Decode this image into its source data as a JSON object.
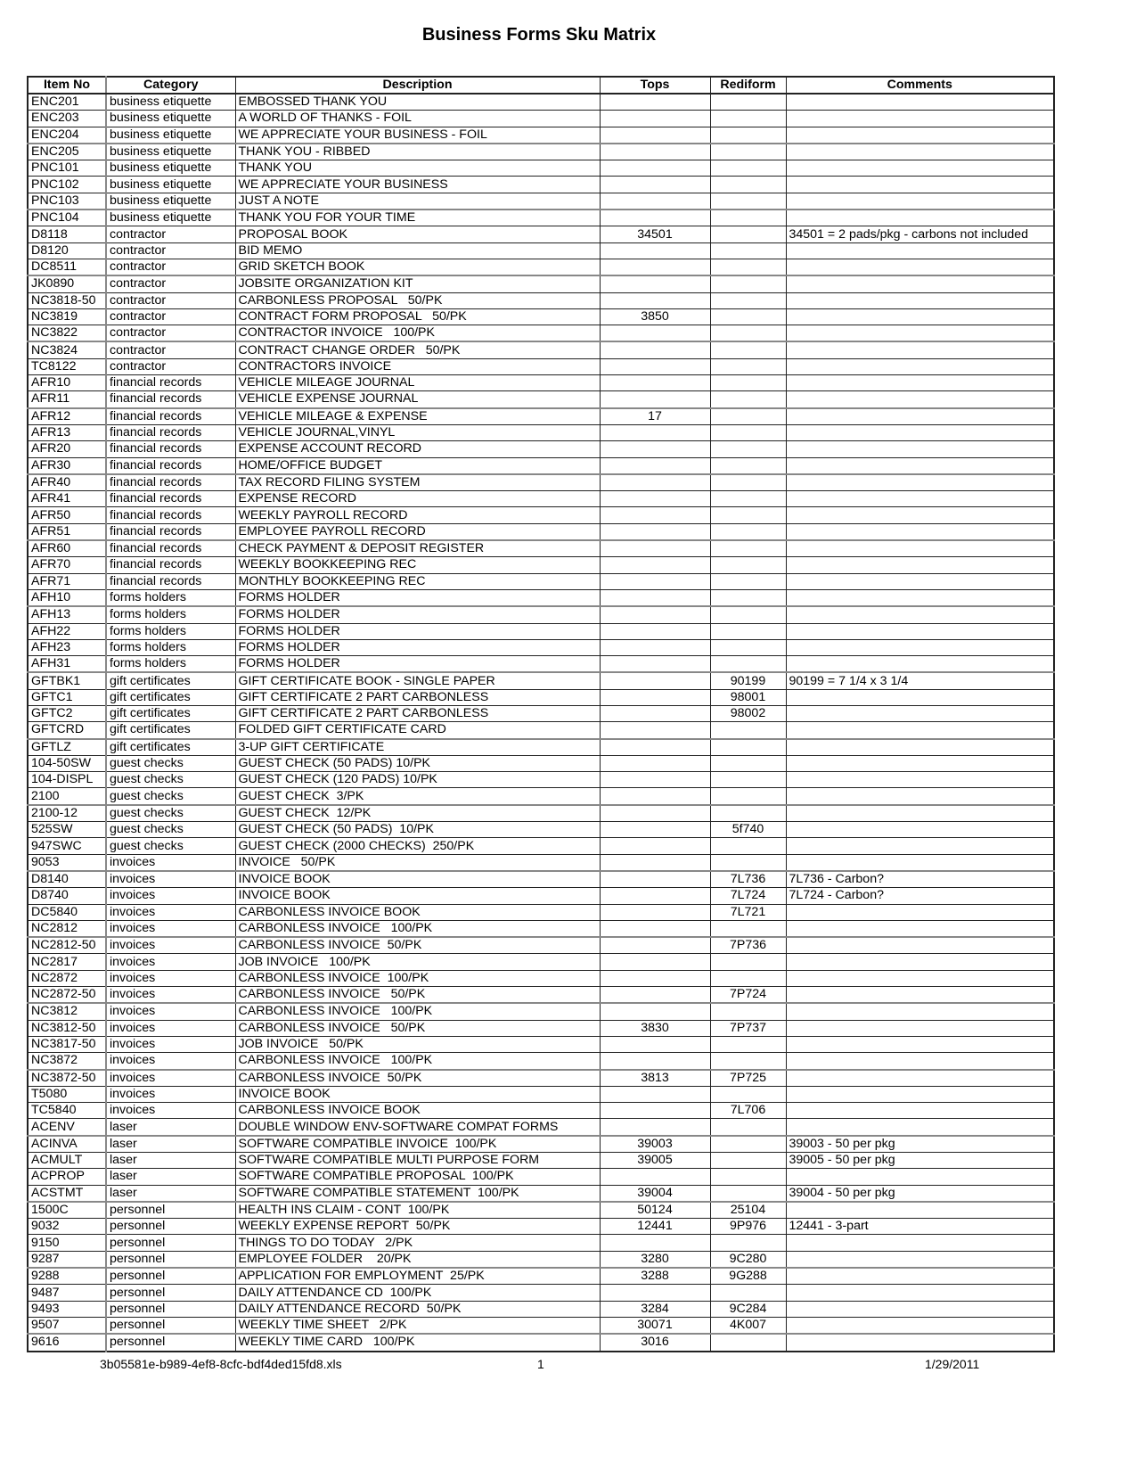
{
  "title": "Business Forms Sku Matrix",
  "columns": [
    "Item No",
    "Category",
    "Description",
    "Tops",
    "Rediform",
    "Comments"
  ],
  "rows": [
    [
      "ENC201",
      "business etiquette",
      "EMBOSSED THANK YOU",
      "",
      "",
      ""
    ],
    [
      "ENC203",
      "business etiquette",
      "A WORLD OF THANKS - FOIL",
      "",
      "",
      ""
    ],
    [
      "ENC204",
      "business etiquette",
      "WE APPRECIATE YOUR BUSINESS - FOIL",
      "",
      "",
      ""
    ],
    [
      "ENC205",
      "business etiquette",
      "THANK YOU - RIBBED",
      "",
      "",
      ""
    ],
    [
      "PNC101",
      "business etiquette",
      "THANK YOU",
      "",
      "",
      ""
    ],
    [
      "PNC102",
      "business etiquette",
      "WE APPRECIATE YOUR BUSINESS",
      "",
      "",
      ""
    ],
    [
      "PNC103",
      "business etiquette",
      "JUST A NOTE",
      "",
      "",
      ""
    ],
    [
      "PNC104",
      "business etiquette",
      "THANK YOU FOR YOUR TIME",
      "",
      "",
      ""
    ],
    [
      "D8118",
      "contractor",
      "PROPOSAL BOOK",
      "34501",
      "",
      "34501 = 2 pads/pkg - carbons not included"
    ],
    [
      "D8120",
      "contractor",
      "BID MEMO",
      "",
      "",
      ""
    ],
    [
      "DC8511",
      "contractor",
      "GRID SKETCH BOOK",
      "",
      "",
      ""
    ],
    [
      "JK0890",
      "contractor",
      "JOBSITE ORGANIZATION KIT",
      "",
      "",
      ""
    ],
    [
      "NC3818-50",
      "contractor",
      "CARBONLESS PROPOSAL   50/PK",
      "",
      "",
      ""
    ],
    [
      "NC3819",
      "contractor",
      "CONTRACT FORM PROPOSAL   50/PK",
      "3850",
      "",
      ""
    ],
    [
      "NC3822",
      "contractor",
      "CONTRACTOR INVOICE   100/PK",
      "",
      "",
      ""
    ],
    [
      "NC3824",
      "contractor",
      "CONTRACT CHANGE ORDER   50/PK",
      "",
      "",
      ""
    ],
    [
      "TC8122",
      "contractor",
      "CONTRACTORS INVOICE",
      "",
      "",
      ""
    ],
    [
      "AFR10",
      "financial records",
      "VEHICLE MILEAGE JOURNAL",
      "",
      "",
      ""
    ],
    [
      "AFR11",
      "financial records",
      "VEHICLE EXPENSE JOURNAL",
      "",
      "",
      ""
    ],
    [
      "AFR12",
      "financial records",
      "VEHICLE MILEAGE & EXPENSE",
      "17",
      "",
      ""
    ],
    [
      "AFR13",
      "financial records",
      "VEHICLE JOURNAL,VINYL",
      "",
      "",
      ""
    ],
    [
      "AFR20",
      "financial records",
      "EXPENSE ACCOUNT RECORD",
      "",
      "",
      ""
    ],
    [
      "AFR30",
      "financial records",
      "HOME/OFFICE BUDGET",
      "",
      "",
      ""
    ],
    [
      "AFR40",
      "financial records",
      "TAX RECORD FILING SYSTEM",
      "",
      "",
      ""
    ],
    [
      "AFR41",
      "financial records",
      "EXPENSE RECORD",
      "",
      "",
      ""
    ],
    [
      "AFR50",
      "financial records",
      "WEEKLY PAYROLL RECORD",
      "",
      "",
      ""
    ],
    [
      "AFR51",
      "financial records",
      "EMPLOYEE PAYROLL RECORD",
      "",
      "",
      ""
    ],
    [
      "AFR60",
      "financial records",
      "CHECK PAYMENT & DEPOSIT REGISTER",
      "",
      "",
      ""
    ],
    [
      "AFR70",
      "financial records",
      "WEEKLY BOOKKEEPING REC",
      "",
      "",
      ""
    ],
    [
      "AFR71",
      "financial records",
      "MONTHLY BOOKKEEPING REC",
      "",
      "",
      ""
    ],
    [
      "AFH10",
      "forms holders",
      "FORMS HOLDER",
      "",
      "",
      ""
    ],
    [
      "AFH13",
      "forms holders",
      "FORMS HOLDER",
      "",
      "",
      ""
    ],
    [
      "AFH22",
      "forms holders",
      "FORMS HOLDER",
      "",
      "",
      ""
    ],
    [
      "AFH23",
      "forms holders",
      "FORMS HOLDER",
      "",
      "",
      ""
    ],
    [
      "AFH31",
      "forms holders",
      "FORMS HOLDER",
      "",
      "",
      ""
    ],
    [
      "GFTBK1",
      "gift certificates",
      "GIFT CERTIFICATE BOOK - SINGLE PAPER",
      "",
      "90199",
      "90199 = 7 1/4 x 3 1/4"
    ],
    [
      "GFTC1",
      "gift certificates",
      "GIFT CERTIFICATE 2 PART CARBONLESS",
      "",
      "98001",
      ""
    ],
    [
      "GFTC2",
      "gift certificates",
      "GIFT CERTIFICATE 2 PART CARBONLESS",
      "",
      "98002",
      ""
    ],
    [
      "GFTCRD",
      "gift certificates",
      "FOLDED GIFT CERTIFICATE CARD",
      "",
      "",
      ""
    ],
    [
      "GFTLZ",
      "gift certificates",
      "3-UP GIFT CERTIFICATE",
      "",
      "",
      ""
    ],
    [
      "104-50SW",
      "guest checks",
      "GUEST CHECK (50 PADS) 10/PK",
      "",
      "",
      ""
    ],
    [
      "104-DISPL",
      "guest checks",
      "GUEST CHECK (120 PADS) 10/PK",
      "",
      "",
      ""
    ],
    [
      "2100",
      "guest checks",
      "GUEST CHECK  3/PK",
      "",
      "",
      ""
    ],
    [
      "2100-12",
      "guest checks",
      "GUEST CHECK  12/PK",
      "",
      "",
      ""
    ],
    [
      "525SW",
      "guest checks",
      "GUEST CHECK (50 PADS)  10/PK",
      "",
      "5f740",
      ""
    ],
    [
      "947SWC",
      "guest checks",
      "GUEST CHECK (2000 CHECKS)  250/PK",
      "",
      "",
      ""
    ],
    [
      "9053",
      "invoices",
      "INVOICE   50/PK",
      "",
      "",
      ""
    ],
    [
      "D8140",
      "invoices",
      "INVOICE BOOK",
      "",
      "7L736",
      "7L736 - Carbon?"
    ],
    [
      "D8740",
      "invoices",
      "INVOICE BOOK",
      "",
      "7L724",
      "7L724 - Carbon?"
    ],
    [
      "DC5840",
      "invoices",
      "CARBONLESS INVOICE BOOK",
      "",
      "7L721",
      ""
    ],
    [
      "NC2812",
      "invoices",
      "CARBONLESS INVOICE   100/PK",
      "",
      "",
      ""
    ],
    [
      "NC2812-50",
      "invoices",
      "CARBONLESS INVOICE  50/PK",
      "",
      "7P736",
      ""
    ],
    [
      "NC2817",
      "invoices",
      "JOB INVOICE   100/PK",
      "",
      "",
      ""
    ],
    [
      "NC2872",
      "invoices",
      "CARBONLESS INVOICE  100/PK",
      "",
      "",
      ""
    ],
    [
      "NC2872-50",
      "invoices",
      "CARBONLESS INVOICE   50/PK",
      "",
      "7P724",
      ""
    ],
    [
      "NC3812",
      "invoices",
      "CARBONLESS INVOICE   100/PK",
      "",
      "",
      ""
    ],
    [
      "NC3812-50",
      "invoices",
      "CARBONLESS INVOICE   50/PK",
      "3830",
      "7P737",
      ""
    ],
    [
      "NC3817-50",
      "invoices",
      "JOB INVOICE   50/PK",
      "",
      "",
      ""
    ],
    [
      "NC3872",
      "invoices",
      "CARBONLESS INVOICE   100/PK",
      "",
      "",
      ""
    ],
    [
      "NC3872-50",
      "invoices",
      "CARBONLESS INVOICE  50/PK",
      "3813",
      "7P725",
      ""
    ],
    [
      "T5080",
      "invoices",
      "INVOICE BOOK",
      "",
      "",
      ""
    ],
    [
      "TC5840",
      "invoices",
      "CARBONLESS INVOICE BOOK",
      "",
      "7L706",
      ""
    ],
    [
      "ACENV",
      "laser",
      "DOUBLE WINDOW ENV-SOFTWARE COMPAT FORMS",
      "",
      "",
      ""
    ],
    [
      "ACINVA",
      "laser",
      "SOFTWARE COMPATIBLE INVOICE  100/PK",
      "39003",
      "",
      "39003 - 50 per pkg"
    ],
    [
      "ACMULT",
      "laser",
      "SOFTWARE COMPATIBLE MULTI PURPOSE FORM",
      "39005",
      "",
      "39005 - 50 per pkg"
    ],
    [
      "ACPROP",
      "laser",
      "SOFTWARE COMPATIBLE PROPOSAL  100/PK",
      "",
      "",
      ""
    ],
    [
      "ACSTMT",
      "laser",
      "SOFTWARE COMPATIBLE STATEMENT  100/PK",
      "39004",
      "",
      "39004 - 50 per pkg"
    ],
    [
      "1500C",
      "personnel",
      "HEALTH INS CLAIM - CONT  100/PK",
      "50124",
      "25104",
      ""
    ],
    [
      "9032",
      "personnel",
      "WEEKLY EXPENSE REPORT  50/PK",
      "12441",
      "9P976",
      "12441 - 3-part"
    ],
    [
      "9150",
      "personnel",
      "THINGS TO DO TODAY   2/PK",
      "",
      "",
      ""
    ],
    [
      "9287",
      "personnel",
      "EMPLOYEE FOLDER    20/PK",
      "3280",
      "9C280",
      ""
    ],
    [
      "9288",
      "personnel",
      "APPLICATION FOR EMPLOYMENT  25/PK",
      "3288",
      "9G288",
      ""
    ],
    [
      "9487",
      "personnel",
      "DAILY ATTENDANCE CD  100/PK",
      "",
      "",
      ""
    ],
    [
      "9493",
      "personnel",
      "DAILY ATTENDANCE RECORD  50/PK",
      "3284",
      "9C284",
      ""
    ],
    [
      "9507",
      "personnel",
      "WEEKLY TIME SHEET   2/PK",
      "30071",
      "4K007",
      ""
    ],
    [
      "9616",
      "personnel",
      "WEEKLY TIME CARD   100/PK",
      "3016",
      "",
      ""
    ]
  ],
  "footer": {
    "filename": "3b05581e-b989-4ef8-8cfc-bdf4ded15fd8.xls",
    "page": "1",
    "date": "1/29/2011"
  }
}
